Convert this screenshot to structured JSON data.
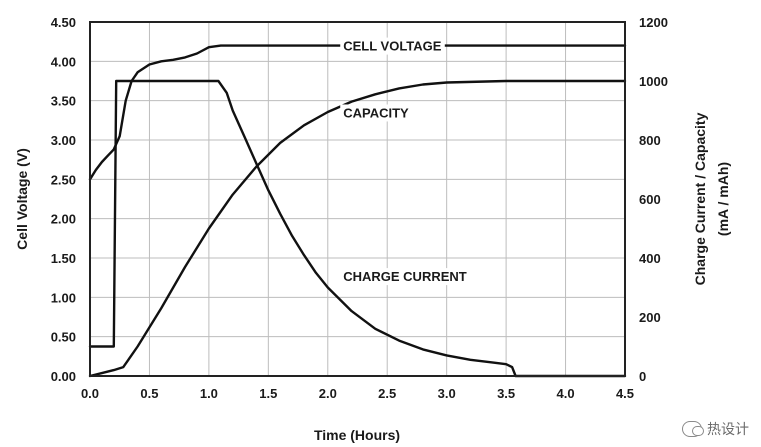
{
  "chart_data": {
    "type": "line",
    "xlabel": "Time (Hours)",
    "ylabel_left": "Cell Voltage (V)",
    "ylabel_right": [
      "Charge Current / Capacity",
      "(mA / mAh)"
    ],
    "x_ticks": [
      "0.0",
      "0.5",
      "1.0",
      "1.5",
      "2.0",
      "2.5",
      "3.0",
      "3.5",
      "4.0",
      "4.5"
    ],
    "y_left_ticks": [
      "0.00",
      "0.50",
      "1.00",
      "1.50",
      "2.00",
      "2.50",
      "3.00",
      "3.50",
      "4.00",
      "4.50"
    ],
    "y_right_ticks": [
      "0",
      "200",
      "400",
      "600",
      "800",
      "1000",
      "1200"
    ],
    "xlim": [
      0,
      4.5
    ],
    "ylim_left": [
      0,
      4.5
    ],
    "ylim_right": [
      0,
      1200
    ],
    "grid": true,
    "series": [
      {
        "name": "CELL VOLTAGE",
        "axis": "left",
        "points": [
          [
            0,
            2.5
          ],
          [
            0.05,
            2.62
          ],
          [
            0.1,
            2.72
          ],
          [
            0.15,
            2.8
          ],
          [
            0.2,
            2.88
          ],
          [
            0.25,
            3.05
          ],
          [
            0.3,
            3.5
          ],
          [
            0.35,
            3.75
          ],
          [
            0.4,
            3.86
          ],
          [
            0.5,
            3.96
          ],
          [
            0.6,
            4.0
          ],
          [
            0.7,
            4.02
          ],
          [
            0.8,
            4.05
          ],
          [
            0.9,
            4.1
          ],
          [
            1.0,
            4.18
          ],
          [
            1.1,
            4.2
          ],
          [
            2.0,
            4.2
          ],
          [
            3.0,
            4.2
          ],
          [
            4.0,
            4.2
          ],
          [
            4.5,
            4.2
          ]
        ]
      },
      {
        "name": "CAPACITY",
        "axis": "right",
        "points": [
          [
            0,
            0
          ],
          [
            0.1,
            10
          ],
          [
            0.2,
            20
          ],
          [
            0.28,
            30
          ],
          [
            0.4,
            100
          ],
          [
            0.6,
            230
          ],
          [
            0.8,
            370
          ],
          [
            1.0,
            500
          ],
          [
            1.2,
            615
          ],
          [
            1.4,
            710
          ],
          [
            1.6,
            790
          ],
          [
            1.8,
            850
          ],
          [
            2.0,
            895
          ],
          [
            2.2,
            930
          ],
          [
            2.4,
            955
          ],
          [
            2.6,
            975
          ],
          [
            2.8,
            988
          ],
          [
            3.0,
            995
          ],
          [
            3.5,
            1000
          ],
          [
            4.5,
            1000
          ]
        ]
      },
      {
        "name": "CHARGE CURRENT",
        "axis": "right",
        "points": [
          [
            0,
            100
          ],
          [
            0.19,
            100
          ],
          [
            0.2,
            100
          ],
          [
            0.22,
            1000
          ],
          [
            0.3,
            1000
          ],
          [
            1.0,
            1000
          ],
          [
            1.08,
            1000
          ],
          [
            1.15,
            960
          ],
          [
            1.2,
            900
          ],
          [
            1.3,
            810
          ],
          [
            1.4,
            720
          ],
          [
            1.5,
            630
          ],
          [
            1.6,
            550
          ],
          [
            1.7,
            475
          ],
          [
            1.8,
            410
          ],
          [
            1.9,
            350
          ],
          [
            2.0,
            300
          ],
          [
            2.2,
            220
          ],
          [
            2.4,
            160
          ],
          [
            2.6,
            120
          ],
          [
            2.8,
            90
          ],
          [
            3.0,
            70
          ],
          [
            3.2,
            55
          ],
          [
            3.4,
            45
          ],
          [
            3.5,
            40
          ],
          [
            3.55,
            30
          ],
          [
            3.58,
            0
          ],
          [
            4.5,
            0
          ]
        ]
      }
    ],
    "annotations": [
      {
        "text": "CELL VOLTAGE",
        "x": 2.13,
        "y": 4.2,
        "axis": "left"
      },
      {
        "text": "CAPACITY",
        "x": 2.13,
        "y": 3.35,
        "axis": "left"
      },
      {
        "text": "CHARGE CURRENT",
        "x": 2.13,
        "y": 1.27,
        "axis": "left"
      }
    ]
  },
  "watermark": "热设计"
}
